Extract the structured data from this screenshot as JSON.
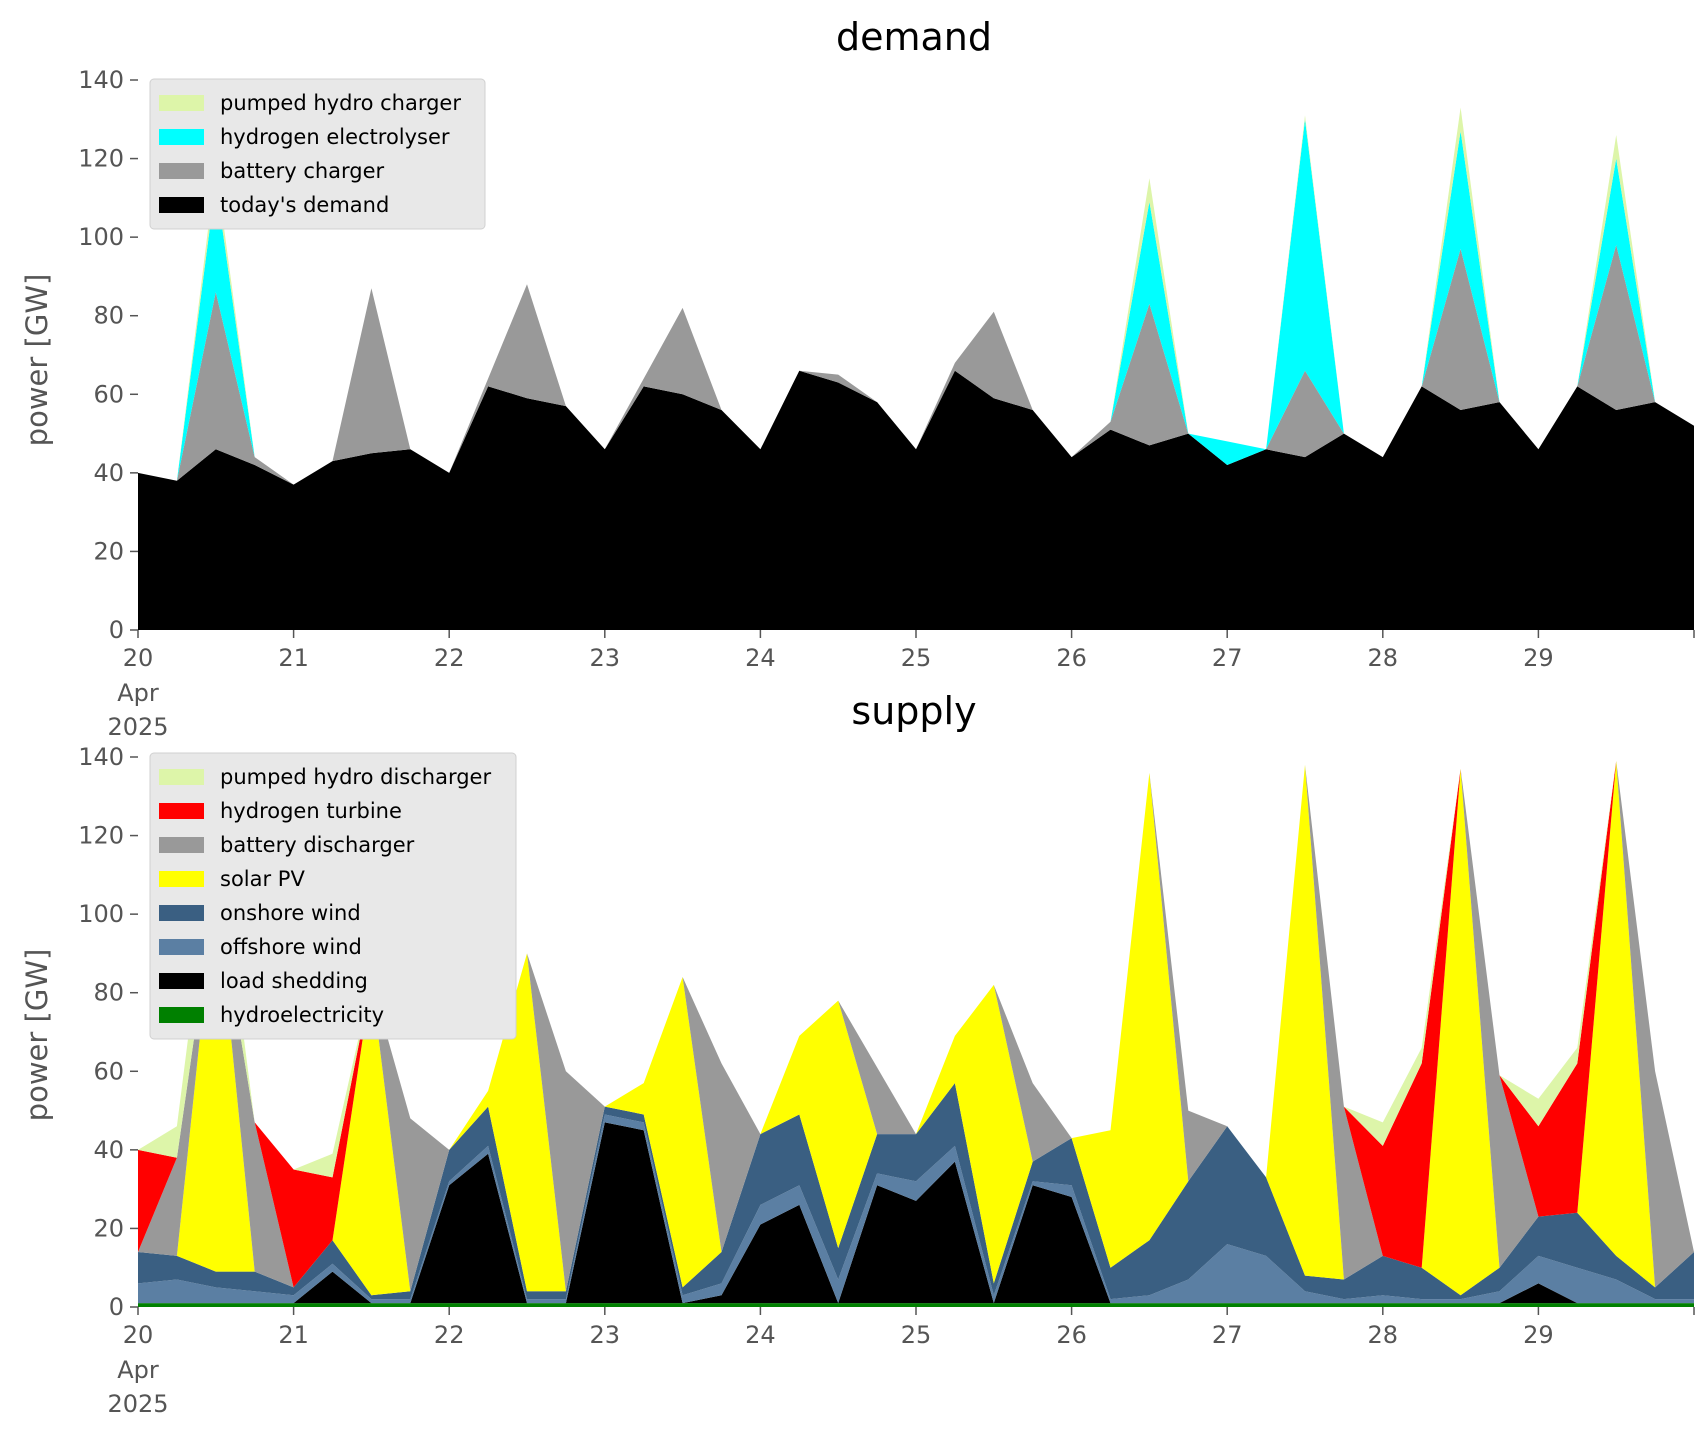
{
  "chart_data": [
    {
      "type": "area",
      "stacked": true,
      "title": "demand",
      "ylabel": "power [GW]",
      "ylim": [
        0,
        140
      ],
      "yticks": [
        "0",
        "20",
        "40",
        "60",
        "80",
        "100",
        "120",
        "140"
      ],
      "xlim": [
        "2025-04-20",
        "2025-04-30"
      ],
      "xticks": [
        "20",
        "21",
        "22",
        "23",
        "24",
        "25",
        "26",
        "27",
        "28",
        "29"
      ],
      "xtick_extra": [
        "Apr",
        "2025"
      ],
      "legend_position": "upper-left",
      "colors": {
        "plot_bg": "#ffffff",
        "legend_bg": "#e8e8e8"
      },
      "x": [
        "2025-04-20",
        "2025-04-20.25",
        "2025-04-20.5",
        "2025-04-20.75",
        "2025-04-21",
        "2025-04-21.25",
        "2025-04-21.5",
        "2025-04-21.75",
        "2025-04-22",
        "2025-04-22.25",
        "2025-04-22.5",
        "2025-04-22.75",
        "2025-04-23",
        "2025-04-23.25",
        "2025-04-23.5",
        "2025-04-23.75",
        "2025-04-24",
        "2025-04-24.25",
        "2025-04-24.5",
        "2025-04-24.75",
        "2025-04-25",
        "2025-04-25.25",
        "2025-04-25.5",
        "2025-04-25.75",
        "2025-04-26",
        "2025-04-26.25",
        "2025-04-26.5",
        "2025-04-26.75",
        "2025-04-27",
        "2025-04-27.25",
        "2025-04-27.5",
        "2025-04-27.75",
        "2025-04-28",
        "2025-04-28.25",
        "2025-04-28.5",
        "2025-04-28.75",
        "2025-04-29",
        "2025-04-29.25",
        "2025-04-29.5",
        "2025-04-29.75",
        "2025-04-30"
      ],
      "series": [
        {
          "name": "today's demand",
          "color": "#000000",
          "values": [
            40,
            38,
            46,
            42,
            37,
            43,
            45,
            46,
            40,
            62,
            59,
            57,
            46,
            62,
            60,
            56,
            46,
            66,
            63,
            58,
            46,
            66,
            59,
            56,
            44,
            51,
            47,
            50,
            42,
            46,
            44,
            50,
            44,
            62,
            56,
            58,
            46,
            62,
            56,
            58,
            52
          ]
        },
        {
          "name": "battery charger",
          "color": "#999999",
          "values": [
            0,
            0,
            40,
            2,
            0,
            0,
            42,
            0,
            0,
            2,
            29,
            0,
            0,
            2,
            22,
            0,
            0,
            0,
            2,
            0,
            0,
            2,
            22,
            0,
            0,
            2,
            36,
            0,
            0,
            0,
            22,
            0,
            0,
            0,
            41,
            0,
            0,
            0,
            42,
            0,
            0
          ]
        },
        {
          "name": "hydrogen electrolyser",
          "color": "#00ffff",
          "values": [
            0,
            0,
            28,
            0,
            0,
            0,
            0,
            0,
            0,
            0,
            0,
            0,
            0,
            0,
            0,
            0,
            0,
            0,
            0,
            0,
            0,
            0,
            0,
            0,
            0,
            0,
            26,
            0,
            6,
            0,
            64,
            0,
            0,
            0,
            30,
            0,
            0,
            0,
            22,
            0,
            0
          ]
        },
        {
          "name": "pumped hydro charger",
          "color": "#ddf5a9",
          "values": [
            0,
            0,
            4,
            0,
            0,
            0,
            0,
            0,
            0,
            0,
            0,
            0,
            0,
            0,
            0,
            0,
            0,
            0,
            0,
            0,
            0,
            0,
            0,
            0,
            0,
            0,
            6,
            0,
            0,
            0,
            1,
            0,
            0,
            0,
            6,
            0,
            0,
            0,
            6,
            0,
            0
          ]
        }
      ],
      "legend": [
        "pumped hydro charger",
        "hydrogen electrolyser",
        "battery charger",
        "today's demand"
      ]
    },
    {
      "type": "area",
      "stacked": true,
      "title": "supply",
      "ylabel": "power [GW]",
      "ylim": [
        0,
        140
      ],
      "yticks": [
        "0",
        "20",
        "40",
        "60",
        "80",
        "100",
        "120",
        "140"
      ],
      "xlim": [
        "2025-04-20",
        "2025-04-30"
      ],
      "xticks": [
        "20",
        "21",
        "22",
        "23",
        "24",
        "25",
        "26",
        "27",
        "28",
        "29"
      ],
      "xtick_extra": [
        "Apr",
        "2025"
      ],
      "legend_position": "upper-left",
      "colors": {
        "plot_bg": "#ffffff",
        "legend_bg": "#e8e8e8"
      },
      "x": [
        "2025-04-20",
        "2025-04-20.25",
        "2025-04-20.5",
        "2025-04-20.75",
        "2025-04-21",
        "2025-04-21.25",
        "2025-04-21.5",
        "2025-04-21.75",
        "2025-04-22",
        "2025-04-22.25",
        "2025-04-22.5",
        "2025-04-22.75",
        "2025-04-23",
        "2025-04-23.25",
        "2025-04-23.5",
        "2025-04-23.75",
        "2025-04-24",
        "2025-04-24.25",
        "2025-04-24.5",
        "2025-04-24.75",
        "2025-04-25",
        "2025-04-25.25",
        "2025-04-25.5",
        "2025-04-25.75",
        "2025-04-26",
        "2025-04-26.25",
        "2025-04-26.5",
        "2025-04-26.75",
        "2025-04-27",
        "2025-04-27.25",
        "2025-04-27.5",
        "2025-04-27.75",
        "2025-04-28",
        "2025-04-28.25",
        "2025-04-28.5",
        "2025-04-28.75",
        "2025-04-29",
        "2025-04-29.25",
        "2025-04-29.5",
        "2025-04-29.75",
        "2025-04-30"
      ],
      "series": [
        {
          "name": "hydroelectricity",
          "color": "#008000",
          "values": [
            1,
            1,
            1,
            1,
            1,
            1,
            1,
            1,
            1,
            1,
            1,
            1,
            1,
            1,
            1,
            1,
            1,
            1,
            1,
            1,
            1,
            1,
            1,
            1,
            1,
            1,
            1,
            1,
            1,
            1,
            1,
            1,
            1,
            1,
            1,
            1,
            1,
            1,
            1,
            1,
            1
          ]
        },
        {
          "name": "load shedding",
          "color": "#000000",
          "values": [
            0,
            0,
            0,
            0,
            0,
            8,
            0,
            0,
            30,
            38,
            0,
            0,
            46,
            44,
            0,
            2,
            20,
            25,
            0,
            30,
            26,
            36,
            0,
            30,
            27,
            0,
            0,
            0,
            0,
            0,
            0,
            0,
            0,
            0,
            0,
            0,
            5,
            0,
            0,
            0,
            0
          ]
        },
        {
          "name": "offshore wind",
          "color": "#5b7fa3",
          "values": [
            5,
            6,
            4,
            3,
            2,
            2,
            1,
            1,
            1,
            2,
            1,
            1,
            2,
            2,
            2,
            3,
            5,
            5,
            6,
            3,
            5,
            4,
            2,
            1,
            3,
            1,
            2,
            6,
            15,
            12,
            3,
            1,
            2,
            1,
            1,
            3,
            7,
            9,
            6,
            1,
            1
          ]
        },
        {
          "name": "onshore wind",
          "color": "#3a5f82",
          "values": [
            8,
            6,
            4,
            5,
            2,
            6,
            1,
            2,
            8,
            10,
            2,
            2,
            2,
            2,
            2,
            8,
            18,
            18,
            8,
            10,
            12,
            16,
            3,
            5,
            12,
            8,
            14,
            25,
            30,
            20,
            4,
            5,
            10,
            8,
            1,
            6,
            10,
            14,
            6,
            3,
            12
          ]
        },
        {
          "name": "solar PV",
          "color": "#ffff00",
          "values": [
            0,
            0,
            98,
            0,
            0,
            0,
            80,
            0,
            0,
            4,
            86,
            0,
            0,
            8,
            79,
            0,
            0,
            20,
            63,
            0,
            0,
            12,
            76,
            0,
            0,
            35,
            119,
            0,
            0,
            0,
            130,
            0,
            0,
            0,
            134,
            0,
            0,
            0,
            126,
            0,
            0
          ]
        },
        {
          "name": "battery discharger",
          "color": "#999999",
          "values": [
            0,
            25,
            0,
            38,
            0,
            0,
            0,
            44,
            0,
            0,
            0,
            56,
            0,
            0,
            0,
            48,
            0,
            0,
            0,
            17,
            0,
            0,
            0,
            20,
            0,
            0,
            0,
            18,
            0,
            0,
            0,
            44,
            0,
            0,
            0,
            49,
            0,
            0,
            0,
            55,
            0
          ]
        },
        {
          "name": "hydrogen turbine",
          "color": "#ff0000",
          "values": [
            26,
            0,
            0,
            0,
            30,
            16,
            0,
            0,
            0,
            0,
            0,
            0,
            0,
            0,
            0,
            0,
            0,
            0,
            0,
            0,
            0,
            0,
            0,
            0,
            0,
            0,
            0,
            0,
            0,
            0,
            0,
            0,
            28,
            52,
            0,
            0,
            23,
            38,
            0,
            0,
            0
          ]
        },
        {
          "name": "pumped hydro discharger",
          "color": "#ddf5a9",
          "values": [
            0,
            8,
            17,
            0,
            0,
            6,
            0,
            0,
            0,
            0,
            0,
            0,
            0,
            0,
            0,
            0,
            0,
            0,
            0,
            0,
            0,
            0,
            0,
            0,
            0,
            0,
            0,
            0,
            0,
            0,
            0,
            0,
            6,
            4,
            0,
            0,
            7,
            4,
            0,
            0,
            0
          ]
        }
      ],
      "legend": [
        "pumped hydro discharger",
        "hydrogen turbine",
        "battery discharger",
        "solar PV",
        "onshore wind",
        "offshore wind",
        "load shedding",
        "hydroelectricity"
      ]
    }
  ]
}
